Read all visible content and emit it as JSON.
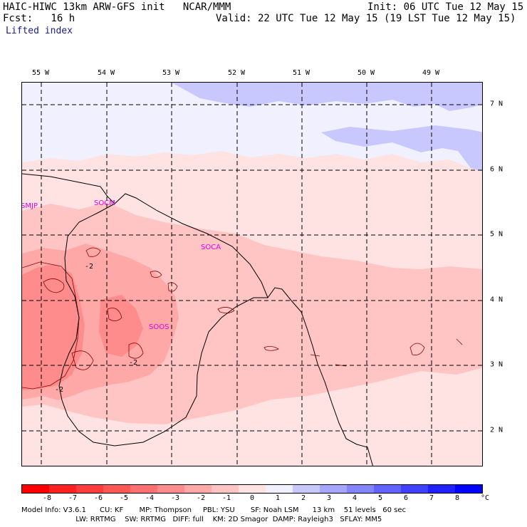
{
  "header": {
    "title": "HAIC-HIWC 13km ARW-GFS init   NCAR/MMM",
    "init": "Init: 06 UTC Tue 12 May 15",
    "fcst": "Fcst:   16 h",
    "valid": "Valid: 22 UTC Tue 12 May 15 (19 LST Tue 12 May 15)",
    "field": "Lifted index"
  },
  "map": {
    "lon_labels": [
      "55 W",
      "54 W",
      "53 W",
      "52 W",
      "51 W",
      "50 W",
      "49 W"
    ],
    "lat_labels": [
      "7 N",
      "6 N",
      "5 N",
      "4 N",
      "3 N",
      "2 N"
    ],
    "sites": [
      "SMJP",
      "SOCM",
      "SOCA",
      "SOOS"
    ],
    "contour_labels": [
      "-2",
      "-2",
      "-2"
    ]
  },
  "colorbar": {
    "ticks": [
      "-8",
      "-7",
      "-6",
      "-5",
      "-4",
      "-3",
      "-2",
      "-1",
      "0",
      "1",
      "2",
      "3",
      "4",
      "5",
      "6",
      "7",
      "8"
    ],
    "unit": "°C",
    "colors": [
      "#ff0000",
      "#ff2020",
      "#ff3c3c",
      "#ff5656",
      "#ff7070",
      "#ff8c8c",
      "#ffa8a8",
      "#ffc4c4",
      "#ffe2e2",
      "#f0f0ff",
      "#c8c8ff",
      "#a6a6ff",
      "#8484ff",
      "#6262ff",
      "#4040ff",
      "#2020ff",
      "#0000ff"
    ]
  },
  "footer": {
    "line1": "Model Info: V3.6.1      CU: KF       MP: Thompson     PBL: YSU       SF: Noah LSM      13 km    51 levels   60 sec",
    "line2": "                        LW: RRTMG    SW: RRTMG   DIFF: full    KM: 2D Smagor  DAMP: Rayleigh3   SFLAY: MM5"
  }
}
